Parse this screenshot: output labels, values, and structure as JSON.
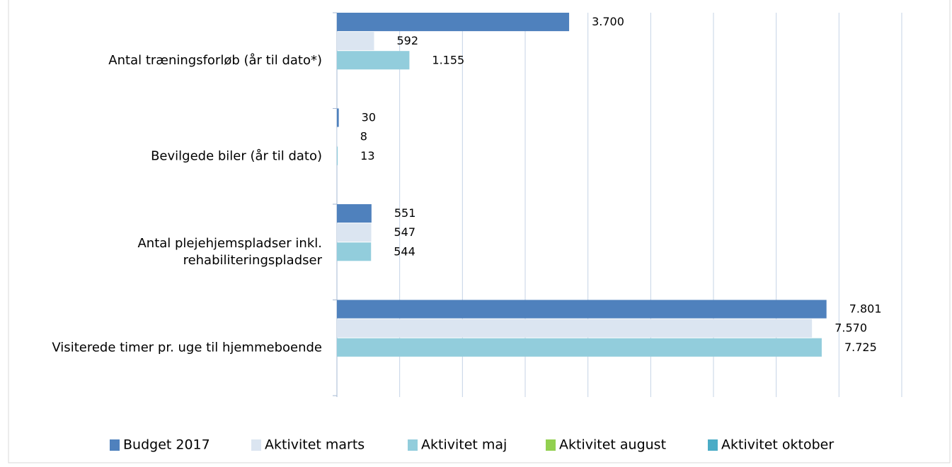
{
  "chart_data": {
    "type": "barh",
    "categories": [
      "Antal træningsforløb (år til dato*)",
      "Bevilgede biler (år til dato)",
      [
        "Antal plejehjemspladser inkl.",
        "rehabiliteringspladser"
      ],
      "Visiterede timer pr. uge til hjemmeboende"
    ],
    "series": [
      {
        "name": "Budget 2017",
        "color": "#4f81bd",
        "values": [
          3700,
          30,
          551,
          7801
        ],
        "value_labels": [
          "3.700",
          "30",
          "551",
          "7.801"
        ]
      },
      {
        "name": "Aktivitet marts",
        "color": "#dbe5f1",
        "values": [
          592,
          8,
          547,
          7570
        ],
        "value_labels": [
          "592",
          "8",
          "547",
          "7.570"
        ]
      },
      {
        "name": "Aktivitet maj",
        "color": "#92cddc",
        "values": [
          1155,
          13,
          544,
          7725
        ],
        "value_labels": [
          "1.155",
          "13",
          "544",
          "7.725"
        ]
      },
      {
        "name": "Aktivitet august",
        "color": "#92d050",
        "values": [
          null,
          null,
          null,
          null
        ]
      },
      {
        "name": "Aktivitet oktober",
        "color": "#4bacc6",
        "values": [
          null,
          null,
          null,
          null
        ]
      }
    ],
    "xlim": [
      0,
      9000
    ],
    "xticks": [
      0,
      1000,
      2000,
      3000,
      4000,
      5000,
      6000,
      7000,
      8000,
      9000
    ],
    "grid": true,
    "legend": "bottom"
  }
}
